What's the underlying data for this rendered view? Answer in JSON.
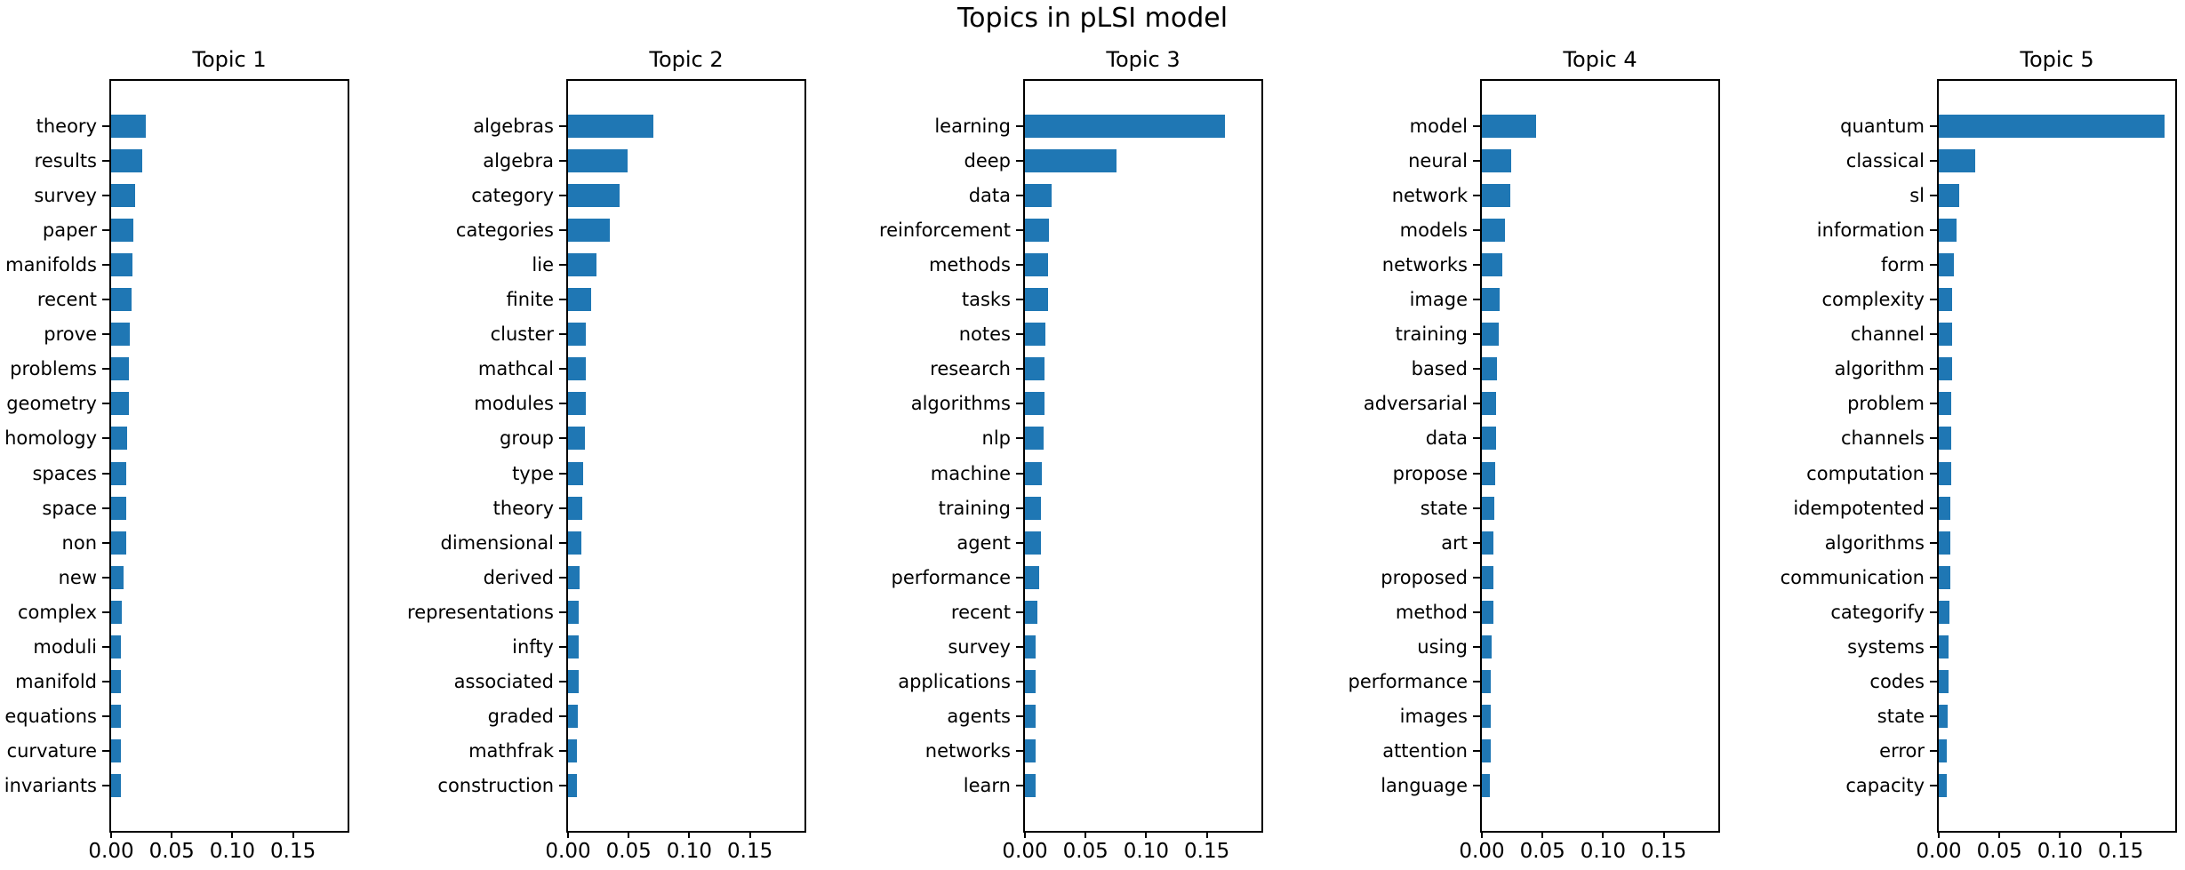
{
  "figure": {
    "title": "Topics in pLSI model",
    "bar_color": "#1f77b4",
    "background_color": "#ffffff",
    "spine_color": "#000000"
  },
  "chart_data": [
    {
      "type": "bar",
      "orientation": "horizontal",
      "title": "Topic 1",
      "categories": [
        "theory",
        "results",
        "survey",
        "paper",
        "manifolds",
        "recent",
        "prove",
        "problems",
        "geometry",
        "homology",
        "spaces",
        "space",
        "non",
        "new",
        "complex",
        "moduli",
        "manifold",
        "equations",
        "curvature",
        "invariants"
      ],
      "values": [
        0.0283,
        0.0259,
        0.02,
        0.0181,
        0.0174,
        0.0167,
        0.0157,
        0.015,
        0.015,
        0.0135,
        0.0128,
        0.0121,
        0.0121,
        0.0099,
        0.0085,
        0.0083,
        0.0082,
        0.0082,
        0.0081,
        0.008
      ],
      "xlim": [
        0,
        0.195
      ],
      "xticks": [
        0,
        0.05,
        0.1,
        0.15
      ],
      "xtick_labels": [
        "0.00",
        "0.05",
        "0.10",
        "0.15"
      ],
      "grid": false,
      "legend": null
    },
    {
      "type": "bar",
      "orientation": "horizontal",
      "title": "Topic 2",
      "categories": [
        "algebras",
        "algebra",
        "category",
        "categories",
        "lie",
        "finite",
        "cluster",
        "mathcal",
        "modules",
        "group",
        "type",
        "theory",
        "dimensional",
        "derived",
        "representations",
        "infty",
        "associated",
        "graded",
        "mathfrak",
        "construction"
      ],
      "values": [
        0.0707,
        0.0493,
        0.0422,
        0.0341,
        0.0232,
        0.019,
        0.0143,
        0.0143,
        0.0143,
        0.0136,
        0.0121,
        0.0117,
        0.0112,
        0.0092,
        0.0088,
        0.0087,
        0.0086,
        0.0078,
        0.0074,
        0.0073
      ],
      "xlim": [
        0,
        0.195
      ],
      "xticks": [
        0,
        0.05,
        0.1,
        0.15
      ],
      "xtick_labels": [
        "0.00",
        "0.05",
        "0.10",
        "0.15"
      ],
      "grid": false,
      "legend": null
    },
    {
      "type": "bar",
      "orientation": "horizontal",
      "title": "Topic 3",
      "categories": [
        "learning",
        "deep",
        "data",
        "reinforcement",
        "methods",
        "tasks",
        "notes",
        "research",
        "algorithms",
        "nlp",
        "machine",
        "training",
        "agent",
        "performance",
        "recent",
        "survey",
        "applications",
        "agents",
        "networks",
        "learn"
      ],
      "values": [
        0.165,
        0.0754,
        0.0223,
        0.0197,
        0.0187,
        0.0187,
        0.0172,
        0.016,
        0.016,
        0.0153,
        0.0138,
        0.0129,
        0.0129,
        0.0114,
        0.01,
        0.009,
        0.0088,
        0.0087,
        0.0086,
        0.0085
      ],
      "xlim": [
        0,
        0.195
      ],
      "xticks": [
        0,
        0.05,
        0.1,
        0.15
      ],
      "xtick_labels": [
        "0.00",
        "0.05",
        "0.10",
        "0.15"
      ],
      "grid": false,
      "legend": null
    },
    {
      "type": "bar",
      "orientation": "horizontal",
      "title": "Topic 4",
      "categories": [
        "model",
        "neural",
        "network",
        "models",
        "networks",
        "image",
        "training",
        "based",
        "adversarial",
        "data",
        "propose",
        "state",
        "art",
        "proposed",
        "method",
        "using",
        "performance",
        "images",
        "attention",
        "language"
      ],
      "values": [
        0.0447,
        0.0242,
        0.0234,
        0.0191,
        0.0171,
        0.015,
        0.0138,
        0.0121,
        0.0115,
        0.0114,
        0.0109,
        0.0099,
        0.0093,
        0.0092,
        0.0092,
        0.0082,
        0.0076,
        0.0075,
        0.0073,
        0.0068
      ],
      "xlim": [
        0,
        0.195
      ],
      "xticks": [
        0,
        0.05,
        0.1,
        0.15
      ],
      "xtick_labels": [
        "0.00",
        "0.05",
        "0.10",
        "0.15"
      ],
      "grid": false,
      "legend": null
    },
    {
      "type": "bar",
      "orientation": "horizontal",
      "title": "Topic 5",
      "categories": [
        "quantum",
        "classical",
        "sl",
        "information",
        "form",
        "complexity",
        "channel",
        "algorithm",
        "problem",
        "channels",
        "computation",
        "idempotented",
        "algorithms",
        "communication",
        "categorify",
        "systems",
        "codes",
        "state",
        "error",
        "capacity"
      ],
      "values": [
        0.1863,
        0.0303,
        0.0172,
        0.0146,
        0.0126,
        0.0112,
        0.0112,
        0.0112,
        0.0102,
        0.0102,
        0.0102,
        0.0093,
        0.0092,
        0.0092,
        0.0085,
        0.0078,
        0.0078,
        0.0075,
        0.0068,
        0.0068
      ],
      "xlim": [
        0,
        0.195
      ],
      "xticks": [
        0,
        0.05,
        0.1,
        0.15
      ],
      "xtick_labels": [
        "0.00",
        "0.05",
        "0.10",
        "0.15"
      ],
      "grid": false,
      "legend": null
    }
  ]
}
